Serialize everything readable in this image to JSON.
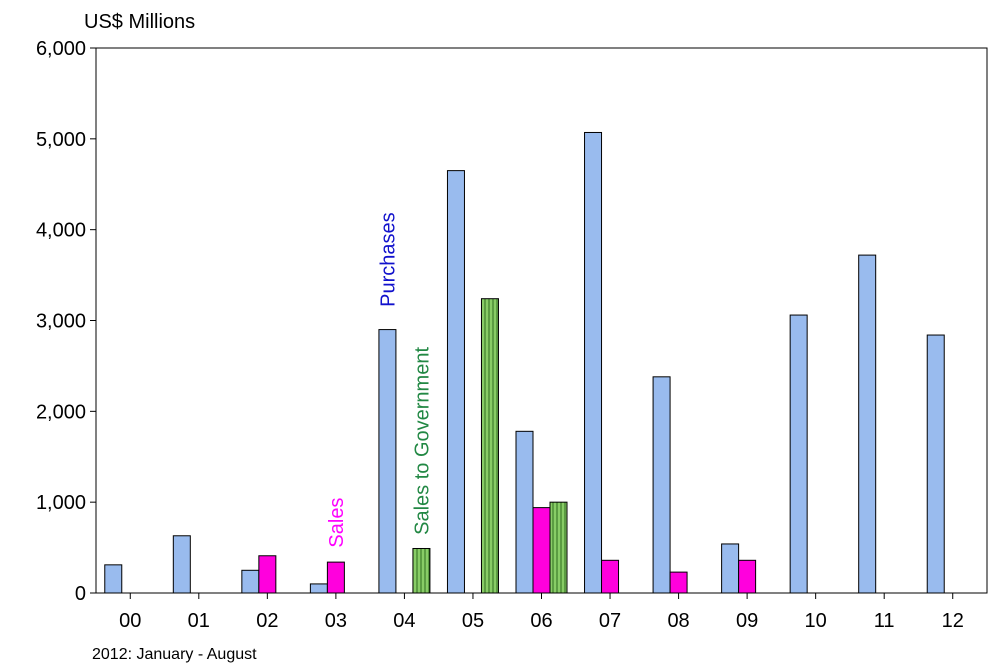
{
  "chart_data": {
    "type": "bar",
    "unit_label": "US$ Millions",
    "note": "2012: January - August",
    "categories": [
      "00",
      "01",
      "02",
      "03",
      "04",
      "05",
      "06",
      "07",
      "08",
      "09",
      "10",
      "11",
      "12"
    ],
    "ylim": [
      0,
      6000
    ],
    "yticks": [
      0,
      1000,
      2000,
      3000,
      4000,
      5000,
      6000
    ],
    "ytick_labels": [
      "0",
      "1,000",
      "2,000",
      "3,000",
      "4,000",
      "5,000",
      "6,000"
    ],
    "grid": false,
    "series": [
      {
        "name": "Purchases",
        "color": "#99BBEE",
        "label_color": "#1111CC",
        "values": [
          310,
          630,
          250,
          100,
          2900,
          4650,
          1780,
          5070,
          2380,
          540,
          3060,
          3720,
          2840
        ]
      },
      {
        "name": "Sales",
        "color": "#FF00DD",
        "label_color": "#FF00FF",
        "values": [
          0,
          0,
          410,
          340,
          0,
          0,
          940,
          360,
          230,
          360,
          0,
          0,
          0
        ]
      },
      {
        "name": "Sales to Government",
        "color": "#88CC66",
        "label_color": "#228844",
        "hatched": true,
        "values": [
          0,
          0,
          0,
          0,
          490,
          3240,
          1000,
          0,
          0,
          0,
          0,
          0,
          0
        ]
      }
    ]
  }
}
